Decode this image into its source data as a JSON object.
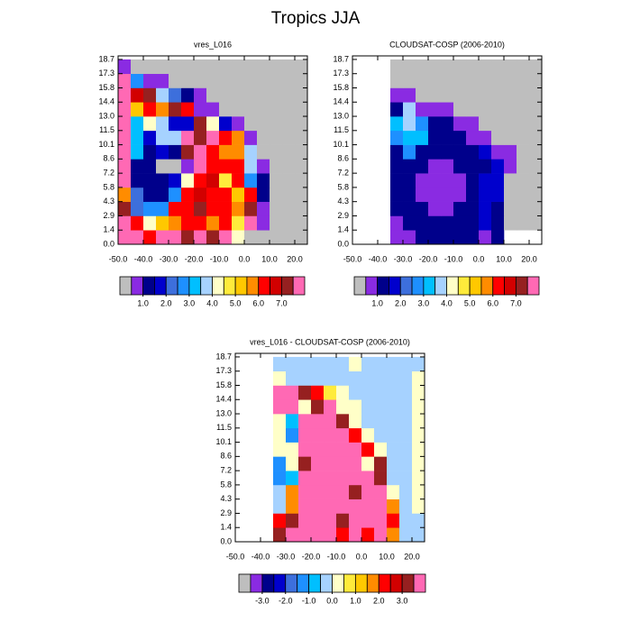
{
  "title": "Tropics JJA",
  "chart_data": [
    {
      "type": "heatmap",
      "title": "vres_L016",
      "x": [
        -47.5,
        -42.5,
        -37.5,
        -32.5,
        -27.5,
        -22.5,
        -17.5,
        -12.5,
        -7.5,
        -2.5,
        2.5,
        7.5,
        12.5,
        17.5,
        22.5
      ],
      "y": [
        0.72,
        2.16,
        3.6,
        5.04,
        6.48,
        7.92,
        9.36,
        10.8,
        12.24,
        13.68,
        15.12,
        16.56,
        18.0
      ],
      "z": [
        [
          8,
          8,
          6.2,
          8,
          8,
          7.2,
          8,
          7.2,
          8,
          4.2,
          0,
          0,
          0,
          0,
          0
        ],
        [
          8,
          6.2,
          4.2,
          5.2,
          5.7,
          6.2,
          6.2,
          5.7,
          6.2,
          4.7,
          8,
          0.7,
          0,
          0,
          0
        ],
        [
          7.2,
          2.2,
          2.7,
          2.7,
          6.2,
          6.2,
          7.2,
          6.2,
          6.2,
          5.7,
          7.2,
          0.7,
          0,
          0,
          0
        ],
        [
          5.7,
          2.2,
          1.2,
          1.2,
          2.7,
          6.2,
          6.7,
          6.2,
          6.2,
          5.2,
          6.2,
          1.2,
          0,
          0,
          0
        ],
        [
          8,
          1.2,
          1.2,
          1.2,
          1.7,
          4.2,
          6.2,
          6.7,
          4.7,
          6.2,
          2.7,
          1.2,
          0,
          0,
          0
        ],
        [
          8,
          1.2,
          1.2,
          0.2,
          0.2,
          0.7,
          8,
          6.2,
          6.2,
          6.2,
          3.7,
          0.7,
          0,
          0,
          0
        ],
        [
          8,
          3.2,
          1.2,
          1.7,
          1.2,
          7.2,
          8,
          6.2,
          5.7,
          5.7,
          3.7,
          0,
          0,
          0,
          0
        ],
        [
          8,
          3.2,
          1.7,
          3.7,
          3.7,
          8,
          7.2,
          8,
          6.2,
          5.7,
          0.7,
          0,
          0,
          0,
          0
        ],
        [
          8,
          3.2,
          4.2,
          3.7,
          1.7,
          1.7,
          7.2,
          4.2,
          1.7,
          0.7,
          0,
          0,
          0,
          0,
          0
        ],
        [
          8,
          5.2,
          6.2,
          5.7,
          7.2,
          6.2,
          0.7,
          0.7,
          0,
          0,
          0,
          0,
          0,
          0,
          0
        ],
        [
          8,
          6.7,
          7.2,
          3.7,
          2.2,
          1.2,
          0.7,
          0,
          0,
          0,
          0,
          0,
          0,
          0,
          0
        ],
        [
          8,
          2.7,
          0.7,
          0.7,
          0,
          0,
          0,
          0,
          0,
          0,
          0,
          0,
          0,
          0,
          0
        ],
        [
          0.7,
          0,
          0,
          0,
          0,
          0,
          0,
          0,
          0,
          0,
          0,
          0,
          0,
          0,
          0
        ]
      ],
      "xlim": [
        -50,
        25
      ],
      "ylim": [
        0,
        19.08
      ],
      "xticks": [
        {
          "value": -50,
          "label": "-50.0"
        },
        {
          "value": -40,
          "label": "-40.0"
        },
        {
          "value": -30,
          "label": "-30.0"
        },
        {
          "value": -20,
          "label": "-20.0"
        },
        {
          "value": -10,
          "label": "-10.0"
        },
        {
          "value": 0,
          "label": "0.0"
        },
        {
          "value": 10,
          "label": "10.0"
        },
        {
          "value": 20,
          "label": "20.0"
        }
      ],
      "yticks": [
        {
          "value": 0,
          "label": "0.0"
        },
        {
          "value": 1.44,
          "label": "1.4"
        },
        {
          "value": 2.88,
          "label": "2.9"
        },
        {
          "value": 4.32,
          "label": "4.3"
        },
        {
          "value": 5.76,
          "label": "5.8"
        },
        {
          "value": 7.2,
          "label": "7.2"
        },
        {
          "value": 8.64,
          "label": "8.6"
        },
        {
          "value": 10.08,
          "label": "10.1"
        },
        {
          "value": 11.52,
          "label": "11.5"
        },
        {
          "value": 12.96,
          "label": "13.0"
        },
        {
          "value": 14.4,
          "label": "14.4"
        },
        {
          "value": 15.84,
          "label": "15.8"
        },
        {
          "value": 17.28,
          "label": "17.3"
        },
        {
          "value": 18.72,
          "label": "18.7"
        }
      ],
      "colors": [
        "#bebebe",
        "#8a2be2",
        "#00008b",
        "#0000cd",
        "#3d6fdc",
        "#1e90ff",
        "#00bfff",
        "#a6d2ff",
        "#ffffc8",
        "#ffeb3b",
        "#ffc800",
        "#ff8c00",
        "#ff0000",
        "#d20000",
        "#962020",
        "#ff69b4"
      ],
      "colorbar_ticks": [
        {
          "value": 1,
          "label": "1.0"
        },
        {
          "value": 2,
          "label": "2.0"
        },
        {
          "value": 3,
          "label": "3.0"
        },
        {
          "value": 4,
          "label": "4.0"
        },
        {
          "value": 5,
          "label": "5.0"
        },
        {
          "value": 6,
          "label": "6.0"
        },
        {
          "value": 7,
          "label": "7.0"
        }
      ]
    },
    {
      "type": "heatmap",
      "title": "CLOUDSAT-COSP (2006-2010)",
      "x": [
        -47.5,
        -42.5,
        -37.5,
        -32.5,
        -27.5,
        -22.5,
        -17.5,
        -12.5,
        -7.5,
        -2.5,
        2.5,
        7.5,
        12.5,
        17.5,
        22.5
      ],
      "y": [
        0.72,
        2.16,
        3.6,
        5.04,
        6.48,
        7.92,
        9.36,
        10.8,
        12.24,
        13.68,
        15.12,
        16.56,
        18.0
      ],
      "z": [
        [
          null,
          null,
          null,
          0.7,
          0.7,
          1.2,
          1.2,
          1.2,
          1.2,
          1.2,
          0.7,
          1.2,
          null,
          null,
          null
        ],
        [
          null,
          null,
          null,
          0.7,
          1.2,
          1.2,
          1.2,
          1.2,
          1.2,
          1.2,
          1.7,
          1.2,
          0,
          0,
          0
        ],
        [
          null,
          null,
          null,
          1.2,
          1.2,
          1.2,
          0.7,
          0.7,
          1.2,
          1.2,
          1.7,
          1.2,
          0,
          0,
          0
        ],
        [
          null,
          null,
          null,
          1.2,
          1.2,
          0.7,
          0.7,
          0.7,
          0.7,
          1.2,
          1.7,
          1.7,
          0,
          0,
          0
        ],
        [
          null,
          null,
          null,
          1.2,
          1.2,
          0.7,
          0.7,
          0.7,
          0.7,
          1.2,
          1.7,
          1.7,
          0,
          0,
          0
        ],
        [
          null,
          null,
          null,
          1.2,
          1.2,
          1.2,
          0.7,
          0.7,
          1.2,
          1.2,
          1.2,
          1.7,
          0.7,
          0,
          0
        ],
        [
          null,
          null,
          null,
          1.2,
          2.7,
          1.2,
          1.2,
          1.2,
          1.2,
          1.2,
          1.7,
          0.7,
          0.7,
          0,
          0
        ],
        [
          null,
          null,
          null,
          2.7,
          3.2,
          3.2,
          1.2,
          1.2,
          1.2,
          0.7,
          0.7,
          0,
          0,
          0,
          0
        ],
        [
          null,
          null,
          null,
          3.2,
          3.7,
          2.7,
          1.2,
          1.2,
          0.7,
          0.7,
          0,
          0,
          0,
          0,
          0
        ],
        [
          null,
          null,
          null,
          1.2,
          3.7,
          0.7,
          0.7,
          0.7,
          0,
          0,
          0,
          0,
          0,
          0,
          0
        ],
        [
          null,
          null,
          null,
          0.7,
          0.7,
          0,
          0,
          0,
          0,
          0,
          0,
          0,
          0,
          0,
          0
        ],
        [
          null,
          null,
          null,
          0,
          0,
          0,
          0,
          0,
          0,
          0,
          0,
          0,
          0,
          0,
          0
        ],
        [
          null,
          null,
          null,
          0,
          0,
          0,
          0,
          0,
          0,
          0,
          0,
          0,
          0,
          0,
          0
        ]
      ],
      "xlim": [
        -50,
        25
      ],
      "ylim": [
        0,
        19.08
      ],
      "xticks": [
        {
          "value": -50,
          "label": "-50.0"
        },
        {
          "value": -40,
          "label": "-40.0"
        },
        {
          "value": -30,
          "label": "-30.0"
        },
        {
          "value": -20,
          "label": "-20.0"
        },
        {
          "value": -10,
          "label": "-10.0"
        },
        {
          "value": 0,
          "label": "0.0"
        },
        {
          "value": 10,
          "label": "10.0"
        },
        {
          "value": 20,
          "label": "20.0"
        }
      ],
      "yticks": [
        {
          "value": 0,
          "label": "0.0"
        },
        {
          "value": 1.44,
          "label": "1.4"
        },
        {
          "value": 2.88,
          "label": "2.9"
        },
        {
          "value": 4.32,
          "label": "4.3"
        },
        {
          "value": 5.76,
          "label": "5.8"
        },
        {
          "value": 7.2,
          "label": "7.2"
        },
        {
          "value": 8.64,
          "label": "8.6"
        },
        {
          "value": 10.08,
          "label": "10.1"
        },
        {
          "value": 11.52,
          "label": "11.5"
        },
        {
          "value": 12.96,
          "label": "13.0"
        },
        {
          "value": 14.4,
          "label": "14.4"
        },
        {
          "value": 15.84,
          "label": "15.8"
        },
        {
          "value": 17.28,
          "label": "17.3"
        },
        {
          "value": 18.72,
          "label": "18.7"
        }
      ],
      "colors": [
        "#bebebe",
        "#8a2be2",
        "#00008b",
        "#0000cd",
        "#3d6fdc",
        "#1e90ff",
        "#00bfff",
        "#a6d2ff",
        "#ffffc8",
        "#ffeb3b",
        "#ffc800",
        "#ff8c00",
        "#ff0000",
        "#d20000",
        "#962020",
        "#ff69b4"
      ],
      "colorbar_ticks": [
        {
          "value": 1,
          "label": "1.0"
        },
        {
          "value": 2,
          "label": "2.0"
        },
        {
          "value": 3,
          "label": "3.0"
        },
        {
          "value": 4,
          "label": "4.0"
        },
        {
          "value": 5,
          "label": "5.0"
        },
        {
          "value": 6,
          "label": "6.0"
        },
        {
          "value": 7,
          "label": "7.0"
        }
      ]
    },
    {
      "type": "heatmap",
      "title": "vres_L016 - CLOUDSAT-COSP (2006-2010)",
      "x": [
        -47.5,
        -42.5,
        -37.5,
        -32.5,
        -27.5,
        -22.5,
        -17.5,
        -12.5,
        -7.5,
        -2.5,
        2.5,
        7.5,
        12.5,
        17.5,
        22.5
      ],
      "y": [
        0.72,
        2.16,
        3.6,
        5.04,
        6.48,
        7.92,
        9.36,
        10.8,
        12.24,
        13.68,
        15.12,
        16.56,
        18.0
      ],
      "z": [
        [
          null,
          null,
          null,
          3.2,
          4,
          4,
          4,
          4,
          2.2,
          4,
          2.2,
          4,
          1.7,
          -0.2,
          -0.2
        ],
        [
          null,
          null,
          null,
          2.2,
          3.2,
          4,
          4,
          4,
          3.2,
          4,
          4,
          4,
          2.2,
          -0.2,
          -0.2
        ],
        [
          null,
          null,
          null,
          -0.2,
          1.7,
          4,
          4,
          4,
          4,
          4,
          4,
          4,
          1.7,
          -0.2,
          0.2
        ],
        [
          null,
          null,
          null,
          -0.2,
          1.7,
          4,
          4,
          4,
          4,
          3.2,
          4,
          4,
          0.2,
          -0.2,
          0.2
        ],
        [
          null,
          null,
          null,
          -1.2,
          -0.7,
          4,
          4,
          4,
          4,
          4,
          4,
          3.2,
          -0.2,
          -0.2,
          0.2
        ],
        [
          null,
          null,
          null,
          -1.2,
          0.2,
          3.2,
          4,
          4,
          4,
          4,
          0.2,
          3.2,
          -0.2,
          -0.2,
          0.2
        ],
        [
          null,
          null,
          null,
          0.2,
          0.2,
          4,
          4,
          4,
          4,
          4,
          2.2,
          0.2,
          -0.2,
          -0.2,
          0.2
        ],
        [
          null,
          null,
          null,
          0.2,
          -1.2,
          4,
          4,
          4,
          4,
          2.2,
          0.2,
          -0.2,
          -0.2,
          -0.2,
          0.2
        ],
        [
          null,
          null,
          null,
          0.2,
          -0.7,
          4,
          4,
          4,
          3.2,
          0.2,
          -0.2,
          -0.2,
          -0.2,
          -0.2,
          0.2
        ],
        [
          null,
          null,
          null,
          4,
          4,
          0.2,
          3.2,
          4,
          0.2,
          0.2,
          -0.2,
          -0.2,
          -0.2,
          -0.2,
          0.2
        ],
        [
          null,
          null,
          null,
          4,
          4,
          3.2,
          2.2,
          0.7,
          0.2,
          -0.2,
          -0.2,
          -0.2,
          -0.2,
          -0.2,
          0.2
        ],
        [
          null,
          null,
          null,
          0.2,
          -0.2,
          -0.2,
          -0.2,
          -0.2,
          -0.2,
          -0.2,
          -0.2,
          -0.2,
          -0.2,
          -0.2,
          0.2
        ],
        [
          null,
          null,
          null,
          -0.2,
          -0.2,
          -0.2,
          -0.2,
          -0.2,
          -0.2,
          0.2,
          -0.2,
          -0.2,
          -0.2,
          -0.2,
          -0.2
        ]
      ],
      "xlim": [
        -50,
        25
      ],
      "ylim": [
        0,
        19.08
      ],
      "xticks": [
        {
          "value": -50,
          "label": "-50.0"
        },
        {
          "value": -40,
          "label": "-40.0"
        },
        {
          "value": -30,
          "label": "-30.0"
        },
        {
          "value": -20,
          "label": "-20.0"
        },
        {
          "value": -10,
          "label": "-10.0"
        },
        {
          "value": 0,
          "label": "0.0"
        },
        {
          "value": 10,
          "label": "10.0"
        },
        {
          "value": 20,
          "label": "20.0"
        }
      ],
      "yticks": [
        {
          "value": 0,
          "label": "0.0"
        },
        {
          "value": 1.44,
          "label": "1.4"
        },
        {
          "value": 2.88,
          "label": "2.9"
        },
        {
          "value": 4.32,
          "label": "4.3"
        },
        {
          "value": 5.76,
          "label": "5.8"
        },
        {
          "value": 7.2,
          "label": "7.2"
        },
        {
          "value": 8.64,
          "label": "8.6"
        },
        {
          "value": 10.08,
          "label": "10.1"
        },
        {
          "value": 11.52,
          "label": "11.5"
        },
        {
          "value": 12.96,
          "label": "13.0"
        },
        {
          "value": 14.4,
          "label": "14.4"
        },
        {
          "value": 15.84,
          "label": "15.8"
        },
        {
          "value": 17.28,
          "label": "17.3"
        },
        {
          "value": 18.72,
          "label": "18.7"
        }
      ],
      "colors": [
        "#bebebe",
        "#8a2be2",
        "#00008b",
        "#0000cd",
        "#3d6fdc",
        "#1e90ff",
        "#00bfff",
        "#a6d2ff",
        "#ffffc8",
        "#ffeb3b",
        "#ffc800",
        "#ff8c00",
        "#ff0000",
        "#d20000",
        "#962020",
        "#ff69b4"
      ],
      "colorbar_ticks": [
        {
          "value": -3,
          "label": "-3.0"
        },
        {
          "value": -2,
          "label": "-2.0"
        },
        {
          "value": -1,
          "label": "-1.0"
        },
        {
          "value": 0,
          "label": "0.0"
        },
        {
          "value": 1,
          "label": "1.0"
        },
        {
          "value": 2,
          "label": "2.0"
        },
        {
          "value": 3,
          "label": "3.0"
        }
      ]
    }
  ]
}
